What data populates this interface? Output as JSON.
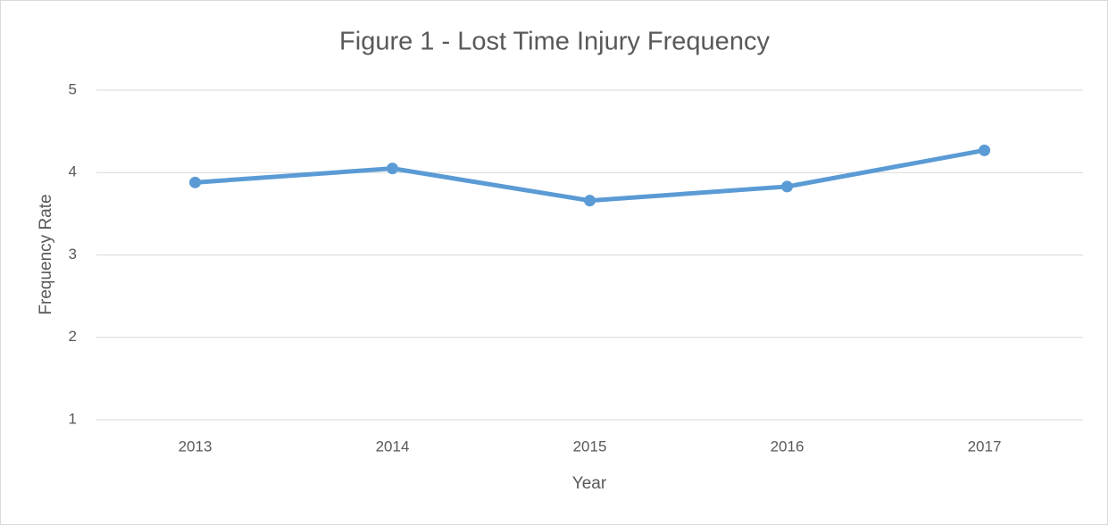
{
  "chart_data": {
    "type": "line",
    "title": "Figure 1 - Lost Time Injury Frequency",
    "x_label": "Year",
    "y_label": "Frequency Rate",
    "categories": [
      "2013",
      "2014",
      "2015",
      "2016",
      "2017"
    ],
    "series": [
      {
        "name": "Frequency Rate",
        "color": "#5b9bd5",
        "values": [
          3.88,
          4.05,
          3.66,
          3.83,
          4.27
        ]
      }
    ],
    "ylim": [
      1,
      5
    ],
    "yticks": [
      1,
      2,
      3,
      4,
      5
    ],
    "grid": true
  }
}
